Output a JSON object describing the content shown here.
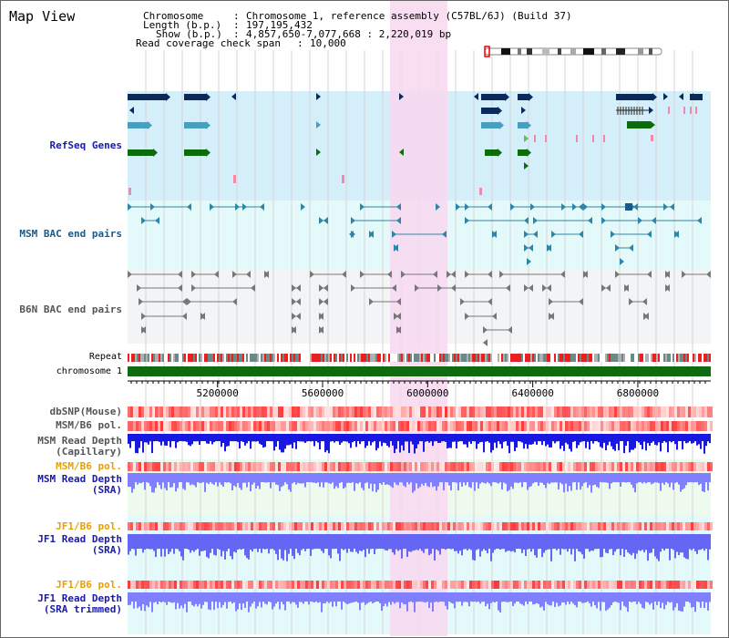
{
  "map_title": "Map View",
  "header": {
    "chromosome_key": "Chromosome",
    "chromosome_val": "Chromosome 1, reference assembly (C57BL/6J) (Build 37)",
    "length_key": "Length (b.p.)",
    "length_val": "197,195,432",
    "show_key": "Show (b.p.)",
    "show_val": "4,857,650-7,077,668 : 2,220,019 bp",
    "coverage_key": "Read coverage check span",
    "coverage_val": "10,000"
  },
  "tracks": {
    "refseq": "RefSeq Genes",
    "msm_bac": "MSM BAC end pairs",
    "b6n_bac": "B6N BAC end pairs",
    "repeat": "Repeat",
    "chromosome": "chromosome 1",
    "dbsnp": "dbSNP(Mouse)",
    "msm_b6_pol": "MSM/B6 pol.",
    "msm_depth_cap_1": "MSM Read Depth",
    "msm_depth_cap_2": "(Capillary)",
    "msm_b6_pol2": "MSM/B6 pol.",
    "msm_depth_sra_1": "MSM Read Depth",
    "msm_depth_sra_2": "(SRA)",
    "jf1_b6_pol": "JF1/B6 pol.",
    "jf1_depth_sra_1": "JF1 Read Depth",
    "jf1_depth_sra_2": "(SRA)",
    "jf1_b6_pol2": "JF1/B6 pol.",
    "jf1_depth_trim_1": "JF1 Read Depth",
    "jf1_depth_trim_2": "(SRA trimmed)"
  },
  "axis_ticks": [
    "5200000",
    "5600000",
    "6000000",
    "6400000",
    "6800000"
  ],
  "colors": {
    "refseq_bg": "#d4eefa",
    "msm_bg": "#e4fafa",
    "b6n_bg": "#f2f4f6",
    "highlight": "#f8d8f0",
    "chromosome_bar": "#0f6b0f",
    "dark_blue": "#0a2a5e",
    "teal": "#4a9ec0",
    "green": "#0c6c0c",
    "pol_red": "#e02020",
    "depth_blue": "#2020e0",
    "depth_light_blue": "#8080ff"
  }
}
